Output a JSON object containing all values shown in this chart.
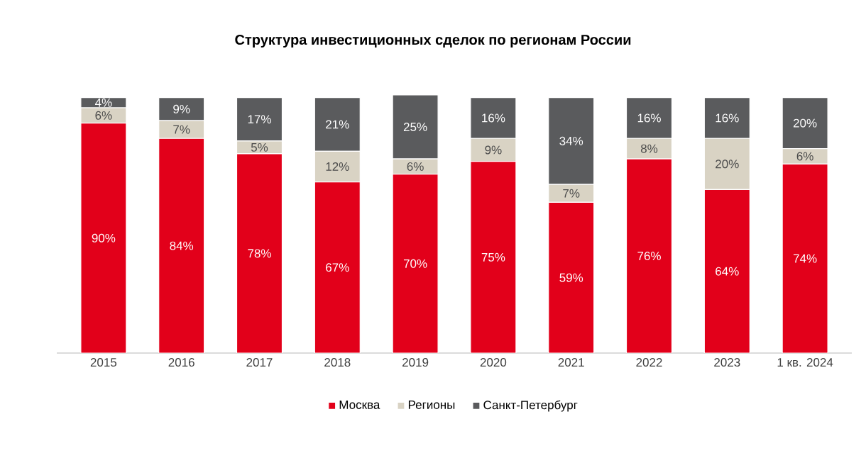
{
  "chart_data": {
    "type": "bar",
    "stacked": true,
    "title": "Структура инвестиционных сделок по регионам России",
    "categories": [
      "2015",
      "2016",
      "2017",
      "2018",
      "2019",
      "2020",
      "2021",
      "2022",
      "2023",
      "1 кв. 2024"
    ],
    "series": [
      {
        "name": "Москва",
        "color": "#e2001a",
        "values": [
          90,
          84,
          78,
          67,
          70,
          75,
          59,
          76,
          64,
          74
        ],
        "value_labels": [
          "90%",
          "84%",
          "78%",
          "67%",
          "70%",
          "75%",
          "59%",
          "76%",
          "64%",
          "74%"
        ]
      },
      {
        "name": "Регионы",
        "color": "#d9d3c4",
        "values": [
          6,
          7,
          5,
          12,
          6,
          9,
          7,
          8,
          20,
          6
        ],
        "value_labels": [
          "6%",
          "7%",
          "5%",
          "12%",
          "6%",
          "9%",
          "7%",
          "8%",
          "20%",
          "6%"
        ]
      },
      {
        "name": "Санкт-Петербург",
        "color": "#5a5b5d",
        "values": [
          4,
          9,
          17,
          21,
          25,
          16,
          34,
          16,
          16,
          20
        ],
        "value_labels": [
          "4%",
          "9%",
          "17%",
          "21%",
          "25%",
          "16%",
          "34%",
          "16%",
          "16%",
          "20%"
        ]
      }
    ],
    "legend": "bottom"
  }
}
